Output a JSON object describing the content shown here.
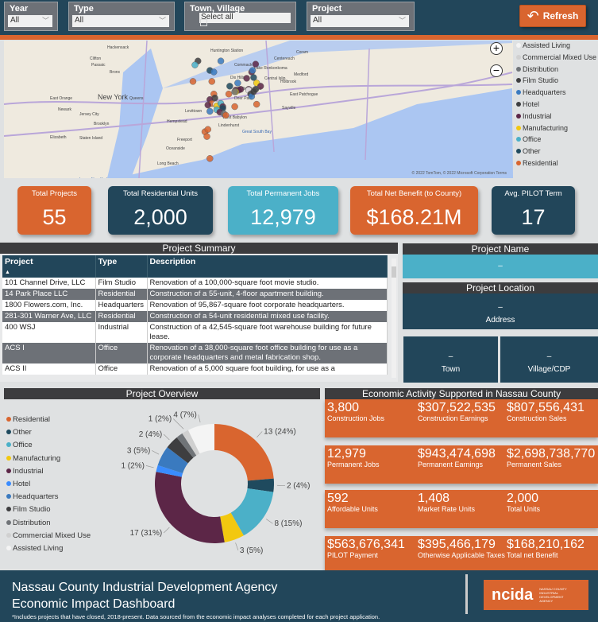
{
  "filters": [
    {
      "label": "Year",
      "value": "All"
    },
    {
      "label": "Type",
      "value": "All"
    },
    {
      "label": "Town, Village",
      "value": "Select all"
    },
    {
      "label": "Project",
      "value": "All"
    }
  ],
  "refresh_label": "Refresh",
  "map": {
    "places": [
      "Hackensack",
      "Clifton",
      "Passaic",
      "Bronx",
      "East Orange",
      "Newark",
      "New York",
      "Queens",
      "Jersey City",
      "Brooklyn",
      "Elizabeth",
      "Staten Island",
      "Huntington Station",
      "Commack",
      "Centereach",
      "Coram",
      "Lake Ronkonkoma",
      "Dix Hills",
      "Central Islip",
      "Holbrook",
      "Medford",
      "Brentwood",
      "Deer Park",
      "East Patchogue",
      "Sayville",
      "West Babylon",
      "Lindenhurst",
      "Great South Bay",
      "Freeport",
      "Oceanside",
      "Long Beach",
      "Hempstead",
      "Levittown",
      "Lower New York"
    ],
    "copyright": "© 2022 TomTom, © 2022 Microsoft Corporation  Terms",
    "legend": [
      {
        "label": "Assisted Living",
        "color": "#f4f4f4"
      },
      {
        "label": "Commercial Mixed Use",
        "color": "#d0d0d0"
      },
      {
        "label": "Distribution",
        "color": "#707478"
      },
      {
        "label": "Film Studio",
        "color": "#3e3e40"
      },
      {
        "label": "Headquarters",
        "color": "#3a7abf"
      },
      {
        "label": "Hotel",
        "color": "#3e3e40"
      },
      {
        "label": "Industrial",
        "color": "#5c2647"
      },
      {
        "label": "Manufacturing",
        "color": "#f2c80f"
      },
      {
        "label": "Office",
        "color": "#4bb0c8"
      },
      {
        "label": "Other",
        "color": "#1f4a5e"
      },
      {
        "label": "Residential",
        "color": "#d9652f"
      }
    ]
  },
  "kpis": [
    {
      "label": "Total Projects",
      "value": "55",
      "color": "#d9652f"
    },
    {
      "label": "Total Residential Units",
      "value": "2,000",
      "color": "#22465a"
    },
    {
      "label": "Total Permanent Jobs",
      "value": "12,979",
      "color": "#4bb0c8"
    },
    {
      "label": "Total Net Benefit (to County)",
      "value": "$168.21M",
      "color": "#d9652f"
    },
    {
      "label": "Avg. PILOT Term",
      "value": "17",
      "color": "#22465a"
    }
  ],
  "summary": {
    "title": "Project Summary",
    "columns": [
      "Project",
      "Type",
      "Description"
    ],
    "rows": [
      [
        "101 Channel Drive, LLC",
        "Film Studio",
        "Renovation of a 100,000-square foot movie studio."
      ],
      [
        "14 Park Place LLC",
        "Residential",
        "Construction of a 55-unit, 4-floor apartment building."
      ],
      [
        "1800 Flowers.com, Inc.",
        "Headquarters",
        "Renovation of 95,867-square foot corporate headquarters."
      ],
      [
        "281-301 Warner Ave, LLC",
        "Residential",
        "Construction of a 54-unit residential mixed use facility."
      ],
      [
        "400 WSJ",
        "Industrial",
        "Construction of a 42,545-square foot warehouse building for future lease."
      ],
      [
        "ACS I",
        "Office",
        "Renovation of a 38,000-square foot office building for use as a corporate headquarters and metal fabrication shop."
      ],
      [
        "ACS II",
        "Office",
        "Renovation of a 5,000 square foot building, for use as a"
      ]
    ]
  },
  "project_name": {
    "title": "Project Name",
    "value": "–"
  },
  "project_location": {
    "title": "Project Location",
    "value": "–",
    "label": "Address"
  },
  "town": {
    "value": "–",
    "label": "Town"
  },
  "village": {
    "value": "–",
    "label": "Village/CDP"
  },
  "overview": {
    "title": "Project Overview"
  },
  "chart_data": {
    "type": "pie",
    "title": "Project Overview",
    "donut": true,
    "slices": [
      {
        "label": "Residential",
        "value": 13,
        "pct": "24%",
        "color": "#d9652f"
      },
      {
        "label": "Other",
        "value": 2,
        "pct": "4%",
        "color": "#1f4a5e"
      },
      {
        "label": "Office",
        "value": 8,
        "pct": "15%",
        "color": "#4bb0c8"
      },
      {
        "label": "Manufacturing",
        "value": 3,
        "pct": "5%",
        "color": "#f2c80f"
      },
      {
        "label": "Industrial",
        "value": 17,
        "pct": "31%",
        "color": "#5c2647"
      },
      {
        "label": "Hotel",
        "value": 1,
        "pct": "2%",
        "color": "#3a8cff"
      },
      {
        "label": "Headquarters",
        "value": 3,
        "pct": "5%",
        "color": "#3a7abf"
      },
      {
        "label": "Film Studio",
        "value": 2,
        "pct": "4%",
        "color": "#3e3e40"
      },
      {
        "label": "Distribution",
        "value": 1,
        "pct": "2%",
        "color": "#707478"
      },
      {
        "label": "Commercial Mixed Use",
        "value": 1,
        "pct": "2%",
        "color": "#d0d0d0"
      },
      {
        "label": "Assisted Living",
        "value": 4,
        "pct": "7%",
        "color": "#f4f4f4"
      }
    ],
    "legend_order": [
      "Residential",
      "Other",
      "Office",
      "Manufacturing",
      "Industrial",
      "Hotel",
      "Headquarters",
      "Film Studio",
      "Distribution",
      "Commercial Mixed Use",
      "Assisted Living"
    ],
    "legend_position": "left"
  },
  "economic": {
    "title": "Economic Activity Supported in Nassau County",
    "rows": [
      [
        {
          "v": "3,800",
          "l": "Construction Jobs"
        },
        {
          "v": "$307,522,535",
          "l": "Construction Earnings"
        },
        {
          "v": "$807,556,431",
          "l": "Construction Sales"
        }
      ],
      [
        {
          "v": "12,979",
          "l": "Permanent Jobs"
        },
        {
          "v": "$943,474,698",
          "l": "Permanent Earnings"
        },
        {
          "v": "$2,698,738,770",
          "l": "Permanent Sales"
        }
      ],
      [
        {
          "v": "592",
          "l": "Affordable Units"
        },
        {
          "v": "1,408",
          "l": "Market Rate Units"
        },
        {
          "v": "2,000",
          "l": "Total Units"
        }
      ],
      [
        {
          "v": "$563,676,341",
          "l": "PILOT Payment"
        },
        {
          "v": "$395,466,179",
          "l": "Otherwise Applicable Taxes"
        },
        {
          "v": "$168,210,162",
          "l": "Total net Benefit"
        }
      ]
    ]
  },
  "footer": {
    "line1": "Nassau County Industrial Development Agency",
    "line2": "Economic Impact Dashboard",
    "note": "*Includes projects that have closed, 2018-present. Data sourced from the economic impact analyses completed for each project application.",
    "logo": "ncida",
    "logo_sub": "NASSAU COUNTY INDUSTRIAL DEVELOPMENT AGENCY"
  }
}
